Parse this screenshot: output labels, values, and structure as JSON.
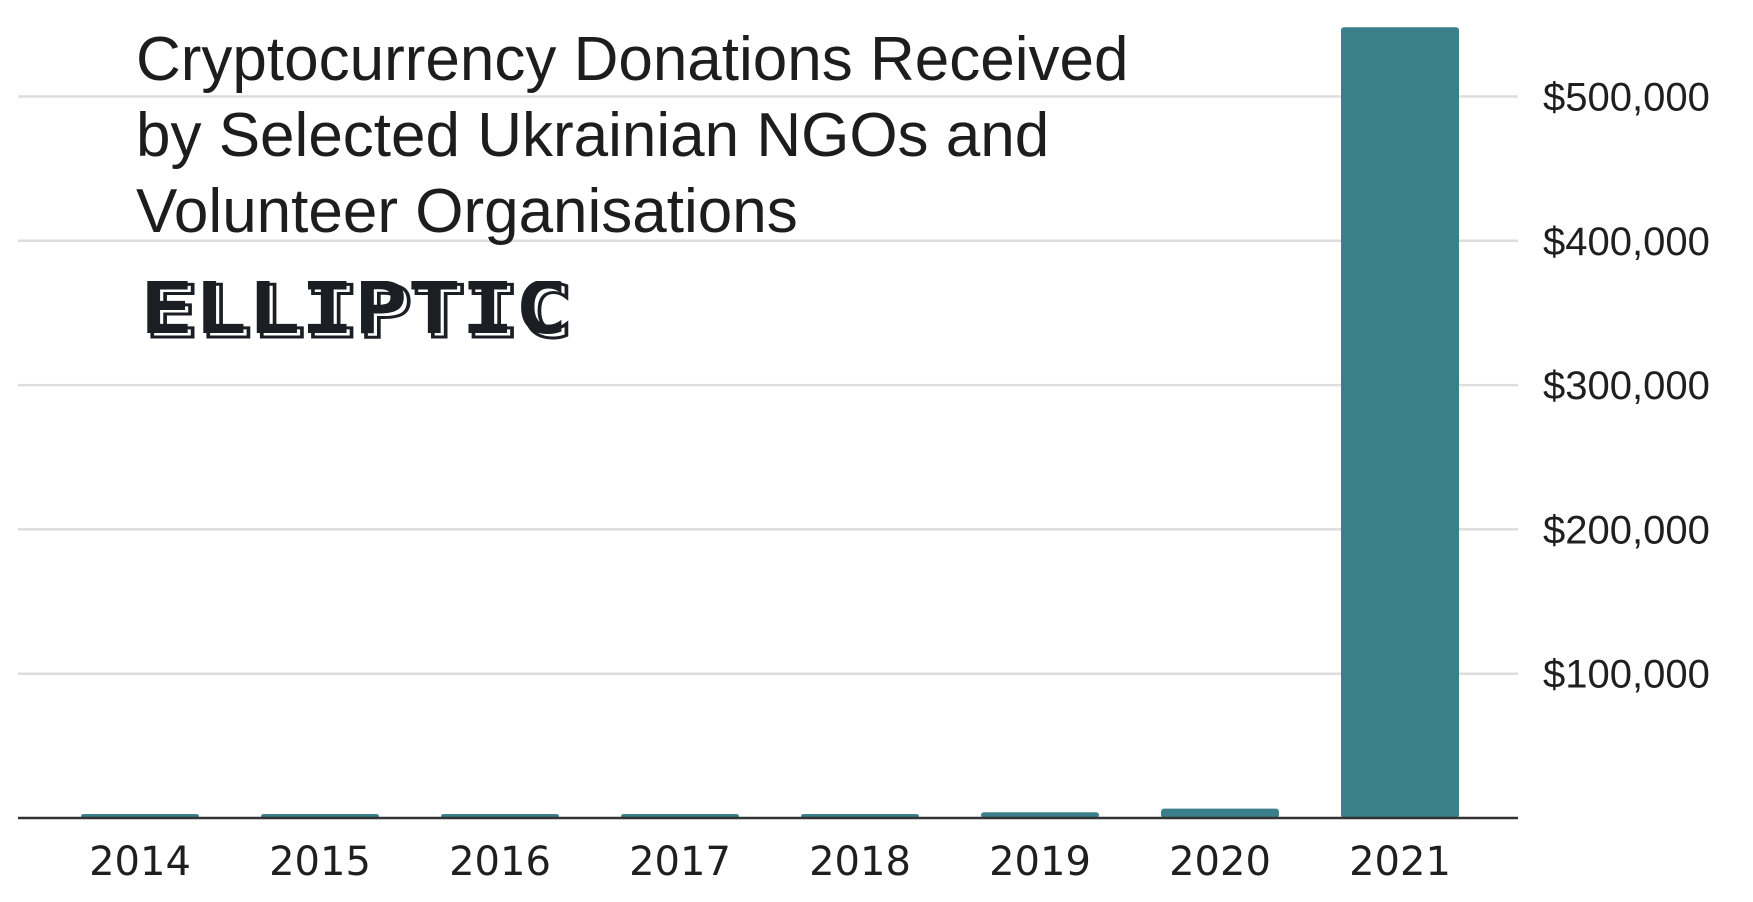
{
  "chart_data": {
    "type": "bar",
    "title": "Cryptocurrency Donations Received by Selected Ukrainian NGOs and Volunteer Organisations",
    "title_lines": [
      "Cryptocurrency Donations Received",
      "by Selected Ukrainian NGOs and",
      "Volunteer Organisations"
    ],
    "brand": "ELLIPTIC",
    "categories": [
      "2014",
      "2015",
      "2016",
      "2017",
      "2018",
      "2019",
      "2020",
      "2021"
    ],
    "values": [
      1500,
      1500,
      1500,
      1500,
      1500,
      4000,
      6500,
      548000
    ],
    "ylim": [
      0,
      550000
    ],
    "yticks": [
      100000,
      200000,
      300000,
      400000,
      500000
    ],
    "ytick_labels": [
      "$100,000",
      "$200,000",
      "$300,000",
      "$400,000",
      "$500,000"
    ],
    "ylabel": "",
    "xlabel": "",
    "grid": true,
    "y_axis_position": "right",
    "colors": {
      "bar": "#3b7f8a",
      "grid": "#dddddd",
      "axis": "#333333",
      "logo": "#1b1f24",
      "text": "#1f1f1f"
    }
  }
}
